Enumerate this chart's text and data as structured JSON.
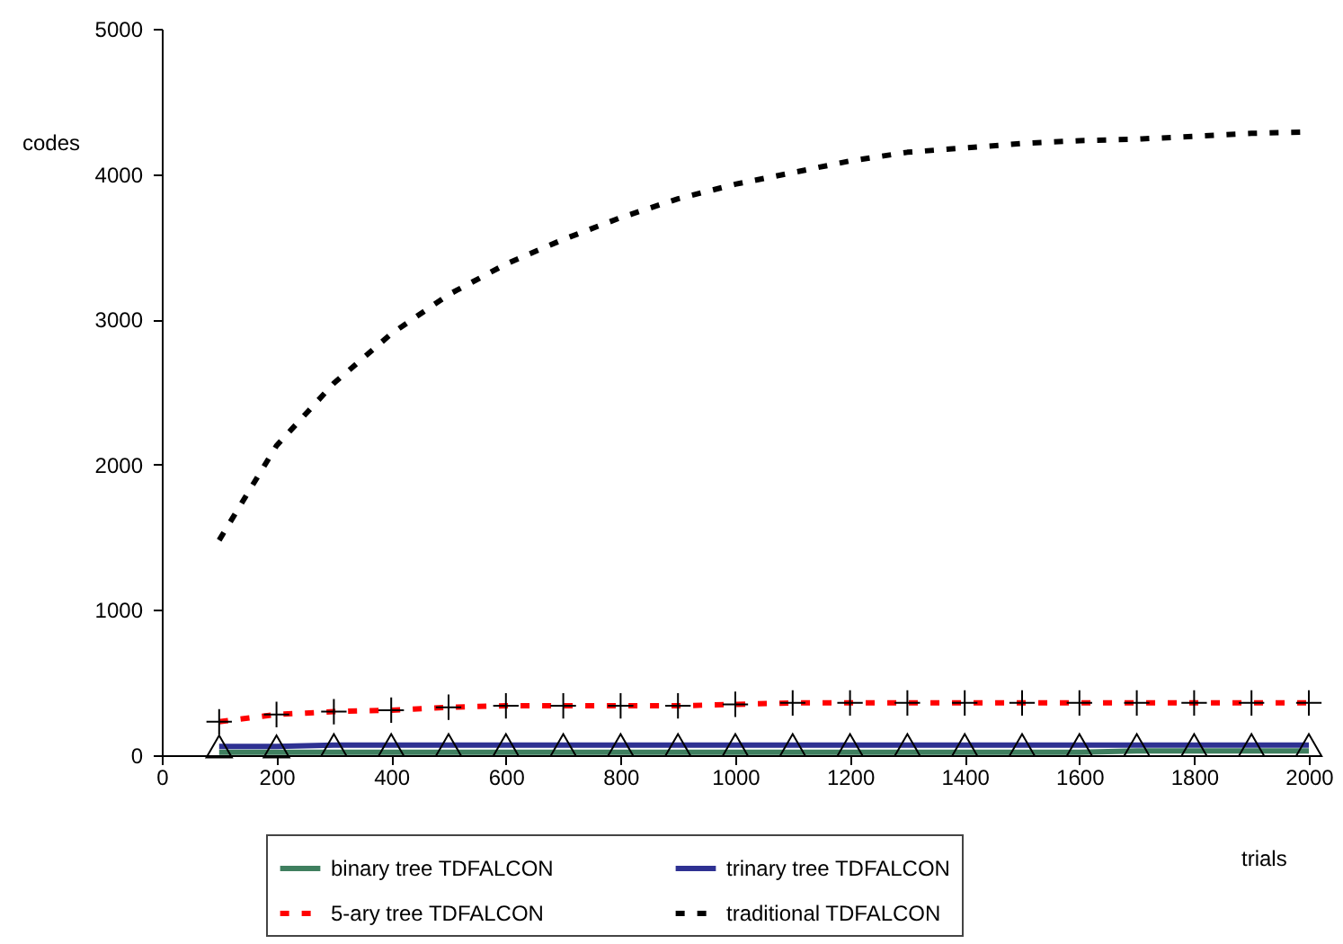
{
  "chart_data": {
    "type": "line",
    "xlabel": "trials",
    "ylabel": "codes",
    "x": [
      100,
      200,
      300,
      400,
      500,
      600,
      700,
      800,
      900,
      1000,
      1100,
      1200,
      1300,
      1400,
      1500,
      1600,
      1700,
      1800,
      1900,
      2000
    ],
    "series": [
      {
        "name": "binary tree TDFALCON",
        "color": "#3f7f5f",
        "line_style": "solid",
        "marker": "none",
        "values": [
          20,
          20,
          20,
          20,
          20,
          20,
          20,
          20,
          20,
          20,
          20,
          20,
          20,
          20,
          20,
          20,
          30,
          30,
          30,
          30
        ]
      },
      {
        "name": "trinary tree TDFALCON",
        "color": "#2e3192",
        "line_style": "solid",
        "marker": "triangle",
        "values": [
          60,
          60,
          70,
          70,
          70,
          70,
          70,
          70,
          70,
          70,
          70,
          70,
          70,
          70,
          70,
          70,
          70,
          70,
          70,
          70
        ]
      },
      {
        "name": "5-ary tree TDFALCON",
        "color": "#ff0000",
        "line_style": "dashed",
        "marker": "cross",
        "values": [
          230,
          280,
          300,
          310,
          330,
          340,
          340,
          340,
          340,
          350,
          360,
          360,
          360,
          360,
          360,
          360,
          360,
          360,
          360,
          360
        ]
      },
      {
        "name": "traditional TDFALCON",
        "color": "#000000",
        "line_style": "dashed",
        "marker": "none",
        "values": [
          1480,
          2130,
          2560,
          2900,
          3170,
          3380,
          3550,
          3700,
          3830,
          3930,
          4010,
          4090,
          4150,
          4180,
          4210,
          4230,
          4240,
          4260,
          4280,
          4290
        ]
      }
    ],
    "xlim": [
      0,
      2000
    ],
    "xticks": [
      0,
      200,
      400,
      600,
      800,
      1000,
      1200,
      1400,
      1600,
      1800,
      2000
    ],
    "ylim": [
      0,
      5000
    ],
    "yticks": [
      0,
      1000,
      2000,
      3000,
      4000,
      5000
    ],
    "grid": false,
    "legend": "bottom"
  }
}
